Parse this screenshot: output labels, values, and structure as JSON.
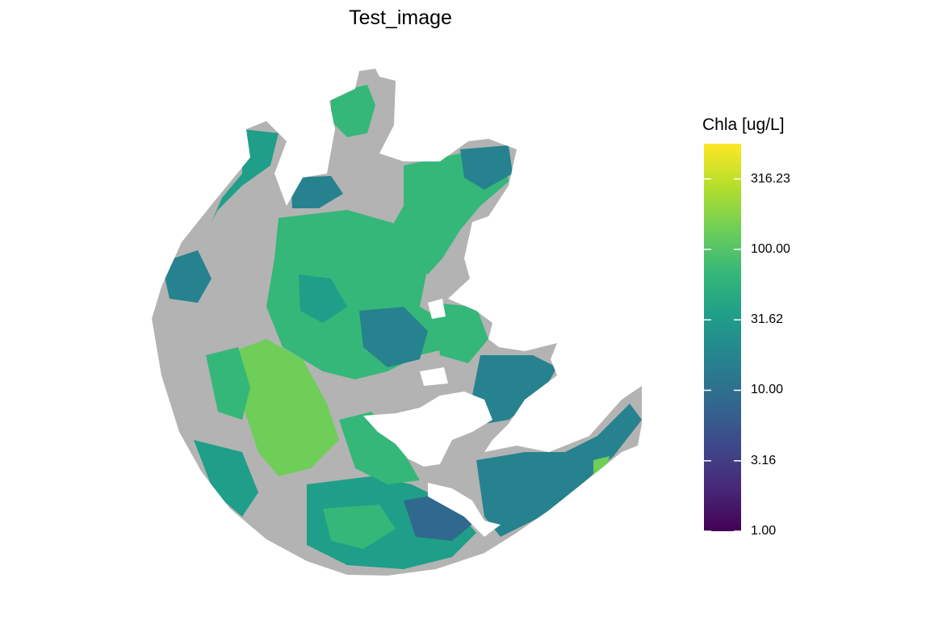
{
  "title": "Test_image",
  "legend": {
    "title": "Chla [ug/L]",
    "scale": "log10",
    "range": [
      1,
      562.34
    ],
    "ticks": [
      {
        "value": 1.0,
        "label": "1.00"
      },
      {
        "value": 3.16,
        "label": "3.16"
      },
      {
        "value": 10.0,
        "label": "10.00"
      },
      {
        "value": 31.62,
        "label": "31.62"
      },
      {
        "value": 100.0,
        "label": "100.00"
      },
      {
        "value": 316.23,
        "label": "316.23"
      }
    ],
    "palette": [
      "#440154",
      "#482878",
      "#3e4989",
      "#31688e",
      "#26828e",
      "#1f9e89",
      "#35b779",
      "#6ece58",
      "#b5de2b",
      "#fde725"
    ]
  },
  "map": {
    "variable": "Chla",
    "nodata_color": "#b3b3b3",
    "background_color": "#ffffff"
  }
}
